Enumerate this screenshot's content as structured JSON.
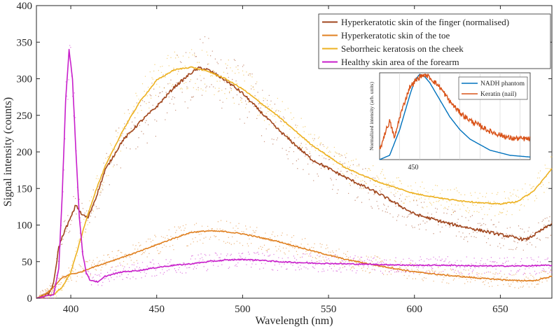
{
  "chart_data": [
    {
      "type": "line",
      "title": "",
      "xlabel": "Wavelength (nm)",
      "ylabel": "Signal intensity (counts)",
      "xlim": [
        380,
        680
      ],
      "ylim": [
        0,
        400
      ],
      "x_ticks": [
        400,
        450,
        500,
        550,
        600,
        650
      ],
      "y_ticks": [
        0,
        50,
        100,
        150,
        200,
        250,
        300,
        350,
        400
      ],
      "grid": false,
      "legend_position": "top-right",
      "series": [
        {
          "name": "Hyperkeratotic skin of the finger (normalised)",
          "color": "#A0461E",
          "x": [
            380,
            387,
            390,
            393,
            396,
            400,
            403,
            406,
            410,
            415,
            420,
            430,
            440,
            450,
            460,
            470,
            475,
            480,
            490,
            500,
            520,
            540,
            560,
            580,
            600,
            620,
            640,
            650,
            660,
            665,
            670,
            680
          ],
          "y": [
            0,
            5,
            20,
            70,
            90,
            110,
            128,
            115,
            110,
            140,
            175,
            215,
            240,
            262,
            288,
            308,
            315,
            312,
            298,
            280,
            232,
            190,
            165,
            142,
            115,
            102,
            92,
            87,
            82,
            80,
            87,
            102
          ]
        },
        {
          "name": "Hyperkeratotic skin of the toe",
          "color": "#E08020",
          "x": [
            380,
            385,
            390,
            395,
            400,
            405,
            410,
            420,
            430,
            440,
            450,
            460,
            470,
            480,
            490,
            500,
            520,
            540,
            560,
            580,
            600,
            620,
            640,
            660,
            670,
            680
          ],
          "y": [
            0,
            5,
            15,
            28,
            33,
            35,
            40,
            48,
            56,
            64,
            73,
            82,
            90,
            92,
            91,
            88,
            78,
            65,
            53,
            44,
            36,
            31,
            27,
            24,
            24,
            30
          ]
        },
        {
          "name": "Seborrheic keratosis on the cheek",
          "color": "#EDB120",
          "x": [
            380,
            390,
            395,
            400,
            405,
            410,
            415,
            420,
            430,
            440,
            450,
            460,
            465,
            470,
            475,
            480,
            490,
            500,
            520,
            540,
            560,
            580,
            600,
            620,
            640,
            650,
            660,
            670,
            680
          ],
          "y": [
            0,
            5,
            15,
            35,
            75,
            115,
            150,
            180,
            228,
            268,
            298,
            312,
            314,
            316,
            313,
            310,
            300,
            286,
            250,
            210,
            178,
            158,
            143,
            135,
            130,
            129,
            132,
            148,
            177
          ]
        },
        {
          "name": "Healthy skin area of the forearm",
          "color": "#C81ECB",
          "x": [
            380,
            390,
            393,
            395,
            397,
            399,
            401,
            403,
            405,
            407,
            409,
            411,
            413,
            416,
            420,
            430,
            440,
            450,
            460,
            470,
            480,
            490,
            500,
            510,
            520,
            540,
            560,
            580,
            600,
            620,
            640,
            660,
            680
          ],
          "y": [
            0,
            5,
            40,
            140,
            270,
            340,
            300,
            200,
            110,
            60,
            35,
            25,
            24,
            22,
            30,
            36,
            38,
            42,
            45,
            47,
            50,
            52,
            53,
            52,
            50,
            48,
            47,
            46,
            45,
            45,
            44,
            44,
            45
          ]
        }
      ]
    },
    {
      "type": "line",
      "title": "",
      "xlabel": "",
      "ylabel": "Normalized intensity (arb. units)",
      "x_tick_labels": [
        "450"
      ],
      "legend_position": "top-right",
      "series": [
        {
          "name": "NADH phantom",
          "color": "#0072BD",
          "x": [
            410,
            420,
            430,
            440,
            445,
            450,
            455,
            460,
            470,
            480,
            490,
            500,
            520,
            540,
            560
          ],
          "y": [
            0.0,
            0.05,
            0.35,
            0.75,
            0.93,
            1.0,
            0.97,
            0.9,
            0.7,
            0.5,
            0.35,
            0.24,
            0.11,
            0.05,
            0.03
          ]
        },
        {
          "name": "Keratin (nail)",
          "color": "#D95319",
          "x": [
            410,
            415,
            420,
            425,
            430,
            440,
            450,
            455,
            460,
            470,
            480,
            490,
            500,
            520,
            540,
            560
          ],
          "y": [
            0.1,
            0.3,
            0.45,
            0.25,
            0.5,
            0.85,
            0.97,
            1.0,
            0.96,
            0.85,
            0.68,
            0.55,
            0.46,
            0.33,
            0.25,
            0.24
          ]
        }
      ]
    }
  ]
}
